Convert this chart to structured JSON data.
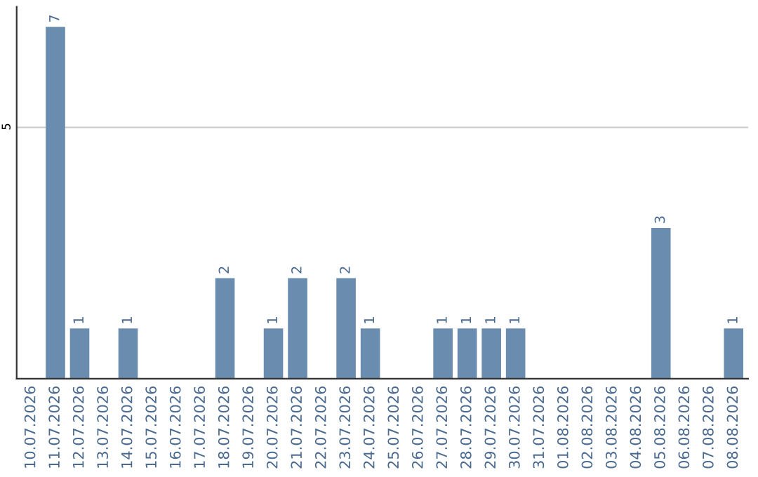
{
  "chart_data": {
    "type": "bar",
    "categories": [
      "10.07.2026",
      "11.07.2026",
      "12.07.2026",
      "13.07.2026",
      "14.07.2026",
      "15.07.2026",
      "16.07.2026",
      "17.07.2026",
      "18.07.2026",
      "19.07.2026",
      "20.07.2026",
      "21.07.2026",
      "22.07.2026",
      "23.07.2026",
      "24.07.2026",
      "25.07.2026",
      "26.07.2026",
      "27.07.2026",
      "28.07.2026",
      "29.07.2026",
      "30.07.2026",
      "31.07.2026",
      "01.08.2026",
      "02.08.2026",
      "03.08.2026",
      "04.08.2026",
      "05.08.2026",
      "06.08.2026",
      "07.08.2026",
      "08.08.2026"
    ],
    "values": [
      0,
      7,
      1,
      0,
      1,
      0,
      0,
      0,
      2,
      0,
      1,
      2,
      0,
      2,
      1,
      0,
      0,
      1,
      1,
      1,
      1,
      0,
      0,
      0,
      0,
      0,
      3,
      0,
      0,
      1
    ],
    "value_labels": [
      null,
      "7",
      "1",
      null,
      "1",
      null,
      null,
      null,
      "2",
      null,
      "1",
      "2",
      null,
      "2",
      "1",
      null,
      null,
      "1",
      "1",
      "1",
      "1",
      null,
      null,
      null,
      null,
      null,
      "3",
      null,
      null,
      "1"
    ],
    "color": "#6a8caf",
    "ylim": [
      0,
      7.4
    ],
    "yticks": [
      5
    ],
    "grid": "y"
  }
}
